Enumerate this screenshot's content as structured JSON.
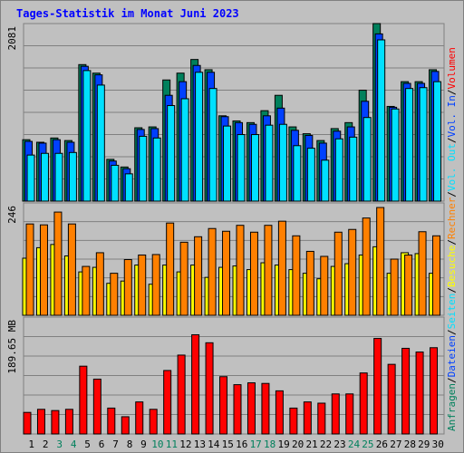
{
  "title": "Tages-Statistik im Monat Juni 2023",
  "colors": {
    "background": "#c0c0c0",
    "frame": "#808080",
    "grid": "#808080",
    "title": "#0000ff",
    "hits": "#00805c",
    "files": "#0040ff",
    "pages": "#00e0ff",
    "visits": "#ff8000",
    "sites": "#ffff00",
    "kbytes": "#ff0000",
    "kbin": "#0040ff",
    "kbout": "#00e0ff",
    "weekday_label": "#000000",
    "weekend_label": "#00805c"
  },
  "right_labels": {
    "top": [
      {
        "text": "Anfragen",
        "color": "#00805c"
      },
      {
        "text": "/",
        "color": "#000000"
      },
      {
        "text": "Dateien",
        "color": "#0040ff"
      },
      {
        "text": "/",
        "color": "#000000"
      },
      {
        "text": "Seiten",
        "color": "#00e0ff"
      },
      {
        "text": "/",
        "color": "#000000"
      },
      {
        "text": "Besuche",
        "color": "#ffff00"
      },
      {
        "text": "/",
        "color": "#000000"
      },
      {
        "text": "Rechner",
        "color": "#ff8000"
      },
      {
        "text": "/",
        "color": "#000000"
      },
      {
        "text": "Vol. Out",
        "color": "#00e0ff"
      },
      {
        "text": "/",
        "color": "#000000"
      },
      {
        "text": "Vol. In",
        "color": "#0040ff"
      },
      {
        "text": "/",
        "color": "#000000"
      },
      {
        "text": "Volumen",
        "color": "#ff0000"
      }
    ]
  },
  "chart_data": [
    {
      "type": "bar",
      "panel": "requests",
      "ymax_label": "2081",
      "ylim": [
        0,
        2081
      ],
      "categories": [
        "1",
        "2",
        "3",
        "4",
        "5",
        "6",
        "7",
        "8",
        "9",
        "10",
        "11",
        "12",
        "13",
        "14",
        "15",
        "16",
        "17",
        "18",
        "19",
        "20",
        "21",
        "22",
        "23",
        "24",
        "25",
        "26",
        "27",
        "28",
        "29",
        "30"
      ],
      "weekend": [
        3,
        4,
        10,
        11,
        17,
        18,
        24,
        25
      ],
      "series": [
        {
          "name": "Anfragen",
          "key": "hits",
          "values": [
            720,
            690,
            740,
            710,
            1600,
            1500,
            490,
            400,
            860,
            870,
            1420,
            1500,
            1660,
            1540,
            1000,
            940,
            920,
            1060,
            1240,
            870,
            790,
            710,
            850,
            920,
            1300,
            2081,
            1110,
            1400,
            1400,
            1540
          ]
        },
        {
          "name": "Dateien",
          "key": "files",
          "values": [
            700,
            680,
            720,
            690,
            1580,
            1480,
            470,
            380,
            840,
            850,
            1240,
            1400,
            1590,
            1510,
            990,
            920,
            900,
            1000,
            1090,
            830,
            770,
            680,
            820,
            870,
            1170,
            1960,
            1100,
            1380,
            1380,
            1520
          ]
        },
        {
          "name": "Seiten",
          "key": "pages",
          "values": [
            540,
            560,
            560,
            570,
            1530,
            1360,
            420,
            320,
            760,
            740,
            1120,
            1200,
            1510,
            1320,
            880,
            780,
            780,
            890,
            900,
            650,
            620,
            480,
            730,
            750,
            980,
            1890,
            1080,
            1320,
            1330,
            1400
          ]
        }
      ]
    },
    {
      "type": "bar",
      "panel": "visits",
      "ymax_label": "246",
      "ylim": [
        0,
        246
      ],
      "series": [
        {
          "name": "Besuche",
          "key": "sites",
          "values": [
            125,
            148,
            155,
            130,
            95,
            105,
            70,
            75,
            110,
            68,
            110,
            95,
            110,
            83,
            105,
            108,
            100,
            115,
            110,
            100,
            92,
            80,
            107,
            113,
            132,
            150,
            92,
            137,
            135,
            92
          ]
        },
        {
          "name": "Rechner",
          "key": "visits",
          "values": [
            200,
            198,
            226,
            200,
            107,
            137,
            92,
            122,
            132,
            133,
            202,
            160,
            172,
            190,
            184,
            197,
            182,
            197,
            206,
            174,
            140,
            129,
            182,
            188,
            213,
            236,
            123,
            132,
            183,
            174
          ]
        }
      ]
    },
    {
      "type": "bar",
      "panel": "volume",
      "ymax_label": "189.65 MB",
      "ylim": [
        0,
        189.65
      ],
      "series": [
        {
          "name": "Volumen",
          "key": "kbytes",
          "values": [
            35,
            40,
            38,
            40,
            110,
            89,
            42,
            28,
            52,
            40,
            103,
            128,
            161,
            148,
            93,
            80,
            83,
            82,
            70,
            42,
            52,
            50,
            65,
            65,
            99,
            155,
            113,
            139,
            133,
            140
          ]
        }
      ]
    }
  ]
}
